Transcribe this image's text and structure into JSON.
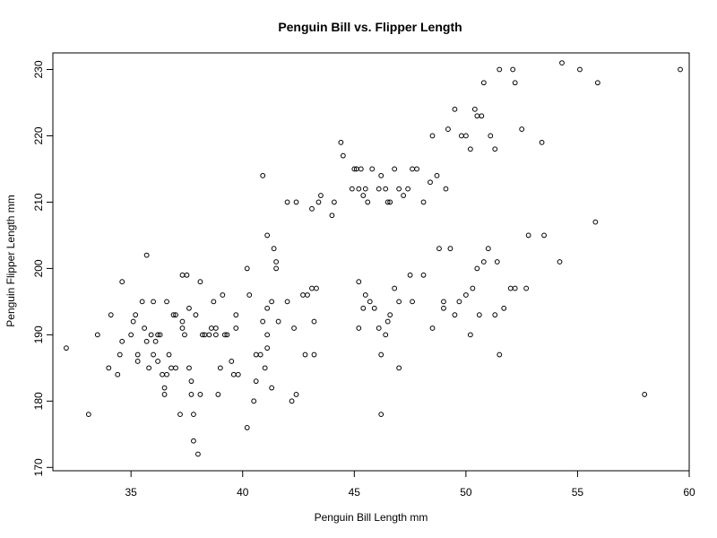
{
  "chart_data": {
    "type": "scatter",
    "title": "Penguin Bill vs. Flipper Length",
    "xlabel": "Penguin Bill Length mm",
    "ylabel": "Penguin Flipper Length mm",
    "xlim": [
      31.5,
      60.0
    ],
    "ylim": [
      169.5,
      232.5
    ],
    "x_ticks": [
      35,
      40,
      45,
      50,
      55,
      60
    ],
    "y_ticks": [
      170,
      180,
      190,
      200,
      210,
      220,
      230
    ],
    "marker_color": "#000000",
    "grid": false,
    "points": [
      [
        32.1,
        188
      ],
      [
        33.1,
        178
      ],
      [
        33.5,
        190
      ],
      [
        34.0,
        185
      ],
      [
        34.1,
        193
      ],
      [
        34.4,
        184
      ],
      [
        34.5,
        187
      ],
      [
        34.6,
        198
      ],
      [
        34.6,
        189
      ],
      [
        35.0,
        190
      ],
      [
        35.1,
        192
      ],
      [
        35.2,
        193
      ],
      [
        35.3,
        187
      ],
      [
        35.3,
        186
      ],
      [
        35.5,
        195
      ],
      [
        35.6,
        191
      ],
      [
        35.7,
        202
      ],
      [
        35.7,
        189
      ],
      [
        35.8,
        185
      ],
      [
        35.9,
        190
      ],
      [
        36.0,
        195
      ],
      [
        36.0,
        187
      ],
      [
        36.1,
        189
      ],
      [
        36.2,
        190
      ],
      [
        36.2,
        186
      ],
      [
        36.3,
        190
      ],
      [
        36.4,
        184
      ],
      [
        36.5,
        182
      ],
      [
        36.5,
        181
      ],
      [
        36.6,
        184
      ],
      [
        36.6,
        195
      ],
      [
        36.7,
        187
      ],
      [
        36.8,
        185
      ],
      [
        36.9,
        193
      ],
      [
        37.0,
        193
      ],
      [
        37.0,
        185
      ],
      [
        37.2,
        178
      ],
      [
        37.3,
        191
      ],
      [
        37.3,
        192
      ],
      [
        37.3,
        199
      ],
      [
        37.4,
        190
      ],
      [
        37.5,
        199
      ],
      [
        37.6,
        194
      ],
      [
        37.6,
        185
      ],
      [
        37.7,
        181
      ],
      [
        37.7,
        183
      ],
      [
        37.8,
        178
      ],
      [
        37.8,
        174
      ],
      [
        37.9,
        193
      ],
      [
        38.0,
        172
      ],
      [
        38.1,
        198
      ],
      [
        38.1,
        181
      ],
      [
        38.2,
        190
      ],
      [
        38.3,
        190
      ],
      [
        38.5,
        190
      ],
      [
        38.6,
        191
      ],
      [
        38.7,
        195
      ],
      [
        38.8,
        191
      ],
      [
        38.8,
        190
      ],
      [
        38.9,
        181
      ],
      [
        39.0,
        185
      ],
      [
        39.1,
        196
      ],
      [
        39.2,
        190
      ],
      [
        39.3,
        190
      ],
      [
        39.5,
        186
      ],
      [
        39.6,
        184
      ],
      [
        39.7,
        193
      ],
      [
        39.7,
        191
      ],
      [
        39.8,
        184
      ],
      [
        40.2,
        176
      ],
      [
        40.2,
        200
      ],
      [
        40.3,
        196
      ],
      [
        40.5,
        180
      ],
      [
        40.6,
        187
      ],
      [
        40.6,
        183
      ],
      [
        40.8,
        187
      ],
      [
        40.9,
        192
      ],
      [
        41.0,
        185
      ],
      [
        41.1,
        188
      ],
      [
        41.1,
        190
      ],
      [
        41.1,
        194
      ],
      [
        41.3,
        182
      ],
      [
        41.3,
        195
      ],
      [
        41.4,
        203
      ],
      [
        41.5,
        201
      ],
      [
        41.6,
        192
      ],
      [
        42.0,
        195
      ],
      [
        42.2,
        180
      ],
      [
        42.3,
        191
      ],
      [
        42.4,
        181
      ],
      [
        42.7,
        196
      ],
      [
        42.8,
        187
      ],
      [
        42.9,
        196
      ],
      [
        43.1,
        197
      ],
      [
        43.2,
        187
      ],
      [
        43.2,
        192
      ],
      [
        43.3,
        197
      ],
      [
        40.9,
        214
      ],
      [
        41.1,
        205
      ],
      [
        41.5,
        200
      ],
      [
        42.0,
        210
      ],
      [
        42.4,
        210
      ],
      [
        43.1,
        209
      ],
      [
        43.4,
        210
      ],
      [
        43.5,
        211
      ],
      [
        44.0,
        208
      ],
      [
        44.1,
        210
      ],
      [
        44.4,
        219
      ],
      [
        44.5,
        217
      ],
      [
        44.9,
        212
      ],
      [
        45.0,
        215
      ],
      [
        45.1,
        215
      ],
      [
        45.2,
        212
      ],
      [
        45.3,
        215
      ],
      [
        45.4,
        211
      ],
      [
        45.5,
        212
      ],
      [
        45.6,
        210
      ],
      [
        45.8,
        215
      ],
      [
        46.1,
        212
      ],
      [
        46.2,
        214
      ],
      [
        46.4,
        212
      ],
      [
        46.5,
        210
      ],
      [
        46.6,
        210
      ],
      [
        46.8,
        215
      ],
      [
        47.0,
        212
      ],
      [
        47.2,
        211
      ],
      [
        47.4,
        212
      ],
      [
        47.6,
        215
      ],
      [
        47.8,
        215
      ],
      [
        48.1,
        210
      ],
      [
        48.4,
        213
      ],
      [
        48.5,
        220
      ],
      [
        48.7,
        214
      ],
      [
        49.1,
        212
      ],
      [
        49.2,
        221
      ],
      [
        49.5,
        224
      ],
      [
        49.8,
        220
      ],
      [
        50.0,
        220
      ],
      [
        50.2,
        218
      ],
      [
        50.4,
        224
      ],
      [
        50.5,
        223
      ],
      [
        50.7,
        223
      ],
      [
        50.8,
        228
      ],
      [
        51.1,
        220
      ],
      [
        51.3,
        218
      ],
      [
        51.5,
        230
      ],
      [
        52.1,
        230
      ],
      [
        52.2,
        228
      ],
      [
        52.5,
        221
      ],
      [
        53.4,
        219
      ],
      [
        54.3,
        231
      ],
      [
        55.1,
        230
      ],
      [
        55.9,
        228
      ],
      [
        59.6,
        230
      ],
      [
        45.2,
        191
      ],
      [
        45.5,
        196
      ],
      [
        45.7,
        195
      ],
      [
        45.9,
        194
      ],
      [
        46.1,
        191
      ],
      [
        46.2,
        187
      ],
      [
        46.4,
        190
      ],
      [
        46.5,
        192
      ],
      [
        46.6,
        193
      ],
      [
        46.8,
        197
      ],
      [
        47.0,
        195
      ],
      [
        47.5,
        199
      ],
      [
        47.6,
        195
      ],
      [
        48.1,
        199
      ],
      [
        48.5,
        191
      ],
      [
        48.8,
        203
      ],
      [
        49.0,
        195
      ],
      [
        49.3,
        203
      ],
      [
        49.5,
        193
      ],
      [
        49.7,
        195
      ],
      [
        50.0,
        196
      ],
      [
        50.2,
        190
      ],
      [
        50.3,
        197
      ],
      [
        50.5,
        200
      ],
      [
        50.6,
        193
      ],
      [
        50.8,
        201
      ],
      [
        51.0,
        203
      ],
      [
        51.3,
        193
      ],
      [
        51.4,
        201
      ],
      [
        51.5,
        187
      ],
      [
        51.7,
        194
      ],
      [
        52.0,
        197
      ],
      [
        52.2,
        197
      ],
      [
        52.7,
        197
      ],
      [
        52.8,
        205
      ],
      [
        53.5,
        205
      ],
      [
        54.2,
        201
      ],
      [
        55.8,
        207
      ],
      [
        58.0,
        181
      ],
      [
        46.2,
        178
      ],
      [
        45.2,
        198
      ],
      [
        45.4,
        194
      ],
      [
        47.0,
        185
      ],
      [
        49.0,
        194
      ]
    ]
  }
}
